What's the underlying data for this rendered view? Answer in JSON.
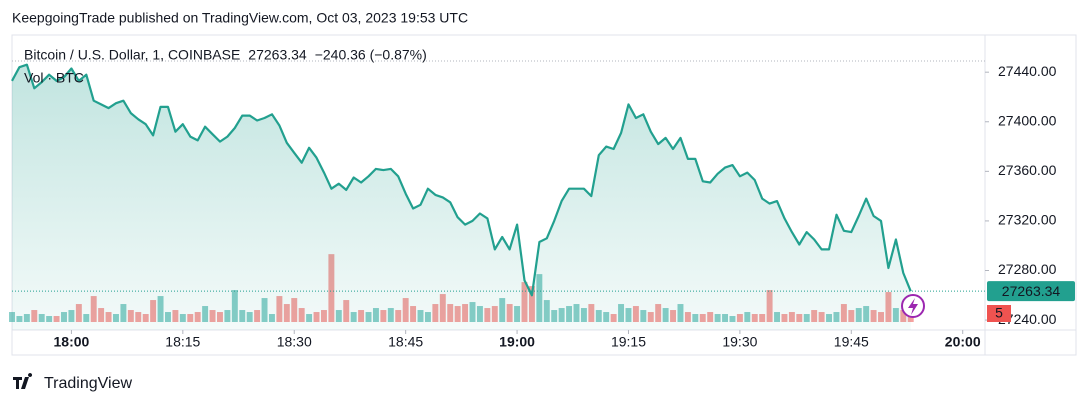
{
  "header": {
    "attribution": "KeepgoingTrade published on TradingView.com, Oct 03, 2023 19:53 UTC",
    "logo": "TradingView"
  },
  "chart_data": {
    "type": "line",
    "series": [
      {
        "name": "Bitcoin / U.S. Dollar, 1, COINBASE",
        "color": "#22a08f",
        "values": [
          27433,
          27444,
          27446,
          27427,
          27432,
          27438,
          27433,
          27436,
          27443,
          27433,
          27438,
          27417,
          27414,
          27411,
          27415,
          27417,
          27407,
          27402,
          27398,
          27389,
          27412,
          27412,
          27392,
          27398,
          27388,
          27385,
          27396,
          27390,
          27384,
          27388,
          27395,
          27405,
          27405,
          27401,
          27403,
          27406,
          27397,
          27383,
          27375,
          27367,
          27379,
          27371,
          27359,
          27346,
          27350,
          27345,
          27355,
          27351,
          27356,
          27362,
          27361,
          27362,
          27356,
          27342,
          27330,
          27333,
          27346,
          27341,
          27339,
          27335,
          27323,
          27317,
          27320,
          27326,
          27322,
          27297,
          27307,
          27297,
          27317,
          27272,
          27260,
          27303,
          27306,
          27320,
          27336,
          27346,
          27346,
          27346,
          27340,
          27373,
          27380,
          27378,
          27391,
          27414,
          27403,
          27406,
          27392,
          27382,
          27387,
          27378,
          27387,
          27370,
          27370,
          27352,
          27351,
          27358,
          27363,
          27365,
          27356,
          27359,
          27353,
          27338,
          27334,
          27336,
          27322,
          27311,
          27301,
          27311,
          27305,
          27297,
          27297,
          27325,
          27312,
          27311,
          27324,
          27338,
          27324,
          27320,
          27282,
          27305,
          27278,
          27263.34
        ]
      }
    ],
    "change": "−240.36 (−0.87%)",
    "volume": {
      "name": "Vol · BTC",
      "up_color": "rgba(38,166,154,0.55)",
      "down_color": "rgba(239,83,80,0.55)",
      "values": [
        5,
        3,
        4,
        6,
        4,
        3,
        3,
        5,
        6,
        9,
        4,
        13,
        7,
        5,
        4,
        9,
        6,
        5,
        4,
        11,
        13,
        5,
        6,
        4,
        4,
        5,
        8,
        6,
        5,
        6,
        16,
        6,
        5,
        6,
        12,
        4,
        13,
        9,
        12,
        7,
        4,
        5,
        6,
        34,
        6,
        11,
        5,
        6,
        5,
        7,
        6,
        7,
        6,
        12,
        8,
        6,
        5,
        9,
        14,
        9,
        8,
        9,
        10,
        8,
        7,
        8,
        12,
        9,
        8,
        20,
        18,
        24,
        11,
        6,
        7,
        8,
        9,
        7,
        9,
        6,
        5,
        4,
        9,
        7,
        8,
        6,
        5,
        9,
        7,
        6,
        9,
        5,
        4,
        4,
        5,
        4,
        4,
        3,
        4,
        5,
        4,
        4,
        16,
        5,
        4,
        5,
        4,
        4,
        6,
        5,
        4,
        5,
        9,
        6,
        7,
        8,
        6,
        5,
        15,
        7,
        6,
        5
      ]
    },
    "x": [
      "17:52",
      "17:53",
      "17:54",
      "17:55",
      "17:56",
      "17:57",
      "17:58",
      "17:59",
      "18:00",
      "18:01",
      "18:02",
      "18:03",
      "18:04",
      "18:05",
      "18:06",
      "18:07",
      "18:08",
      "18:09",
      "18:10",
      "18:11",
      "18:12",
      "18:13",
      "18:14",
      "18:15",
      "18:16",
      "18:17",
      "18:18",
      "18:19",
      "18:20",
      "18:21",
      "18:22",
      "18:23",
      "18:24",
      "18:25",
      "18:26",
      "18:27",
      "18:28",
      "18:29",
      "18:30",
      "18:31",
      "18:32",
      "18:33",
      "18:34",
      "18:35",
      "18:36",
      "18:37",
      "18:38",
      "18:39",
      "18:40",
      "18:41",
      "18:42",
      "18:43",
      "18:44",
      "18:45",
      "18:46",
      "18:47",
      "18:48",
      "18:49",
      "18:50",
      "18:51",
      "18:52",
      "18:53",
      "18:54",
      "18:55",
      "18:56",
      "18:57",
      "18:58",
      "18:59",
      "19:00",
      "19:01",
      "19:02",
      "19:03",
      "19:04",
      "19:05",
      "19:06",
      "19:07",
      "19:08",
      "19:09",
      "19:10",
      "19:11",
      "19:12",
      "19:13",
      "19:14",
      "19:15",
      "19:16",
      "19:17",
      "19:18",
      "19:19",
      "19:20",
      "19:21",
      "19:22",
      "19:23",
      "19:24",
      "19:25",
      "19:26",
      "19:27",
      "19:28",
      "19:29",
      "19:30",
      "19:31",
      "19:32",
      "19:33",
      "19:34",
      "19:35",
      "19:36",
      "19:37",
      "19:38",
      "19:39",
      "19:40",
      "19:41",
      "19:42",
      "19:43",
      "19:44",
      "19:45",
      "19:46",
      "19:47",
      "19:48",
      "19:49",
      "19:50",
      "19:51",
      "19:52",
      "19:53"
    ],
    "xlim": [
      "17:52",
      "20:03"
    ],
    "xticks": [
      "18:00",
      "18:15",
      "18:30",
      "18:45",
      "19:00",
      "19:15",
      "19:30",
      "19:45",
      "20:00"
    ],
    "ylim": [
      27232,
      27470
    ],
    "yticks": [
      {
        "value": 27240,
        "label": "27240.00"
      },
      {
        "value": 27280,
        "label": "27280.00"
      },
      {
        "value": 27320,
        "label": "27320.00"
      },
      {
        "value": 27360,
        "label": "27360.00"
      },
      {
        "value": 27400,
        "label": "27400.00"
      },
      {
        "value": 27440,
        "label": "27440.00"
      }
    ],
    "down_color": "#ef5350"
  }
}
